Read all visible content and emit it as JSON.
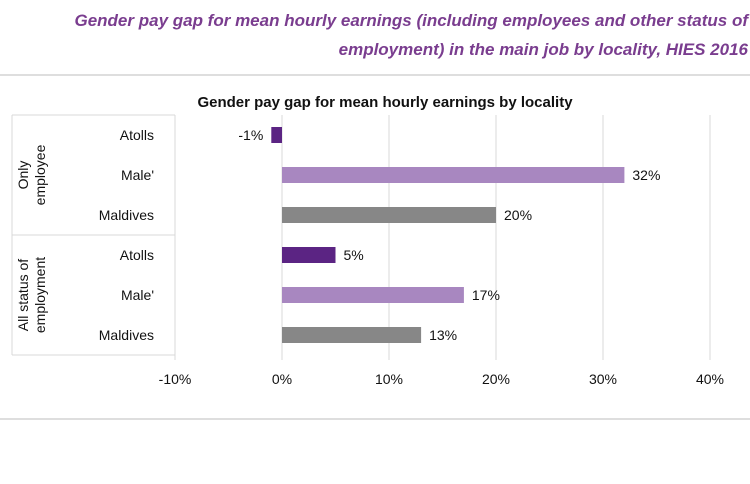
{
  "heading": {
    "line1": "Gender pay gap for mean hourly earnings (including employees and other status of",
    "line2": "employment) in the main job by locality, HIES 2016"
  },
  "colors": {
    "atolls": "#5b2483",
    "male": "#a887c0",
    "maldives": "#878787",
    "heading": "#7a3d8f",
    "grid": "#d9d9d9"
  },
  "chart_data": {
    "type": "bar",
    "orientation": "horizontal",
    "title": "Gender pay gap for mean hourly earnings by  locality",
    "xlim": [
      -10,
      40
    ],
    "x_ticks": [
      -10,
      0,
      10,
      20,
      30,
      40
    ],
    "x_tick_labels": [
      "-10%",
      "0%",
      "10%",
      "20%",
      "30%",
      "40%"
    ],
    "grid": true,
    "legend": "none",
    "groups": [
      {
        "label_lines": [
          "Only",
          "employee"
        ],
        "bars": [
          {
            "category": "Atolls",
            "value": -1,
            "label": "-1%",
            "color_key": "atolls"
          },
          {
            "category": "Male'",
            "value": 32,
            "label": "32%",
            "color_key": "male"
          },
          {
            "category": "Maldives",
            "value": 20,
            "label": "20%",
            "color_key": "maldives"
          }
        ]
      },
      {
        "label_lines": [
          "All status of",
          "employment"
        ],
        "bars": [
          {
            "category": "Atolls",
            "value": 5,
            "label": "5%",
            "color_key": "atolls"
          },
          {
            "category": "Male'",
            "value": 17,
            "label": "17%",
            "color_key": "male"
          },
          {
            "category": "Maldives",
            "value": 13,
            "label": "13%",
            "color_key": "maldives"
          }
        ]
      }
    ]
  }
}
